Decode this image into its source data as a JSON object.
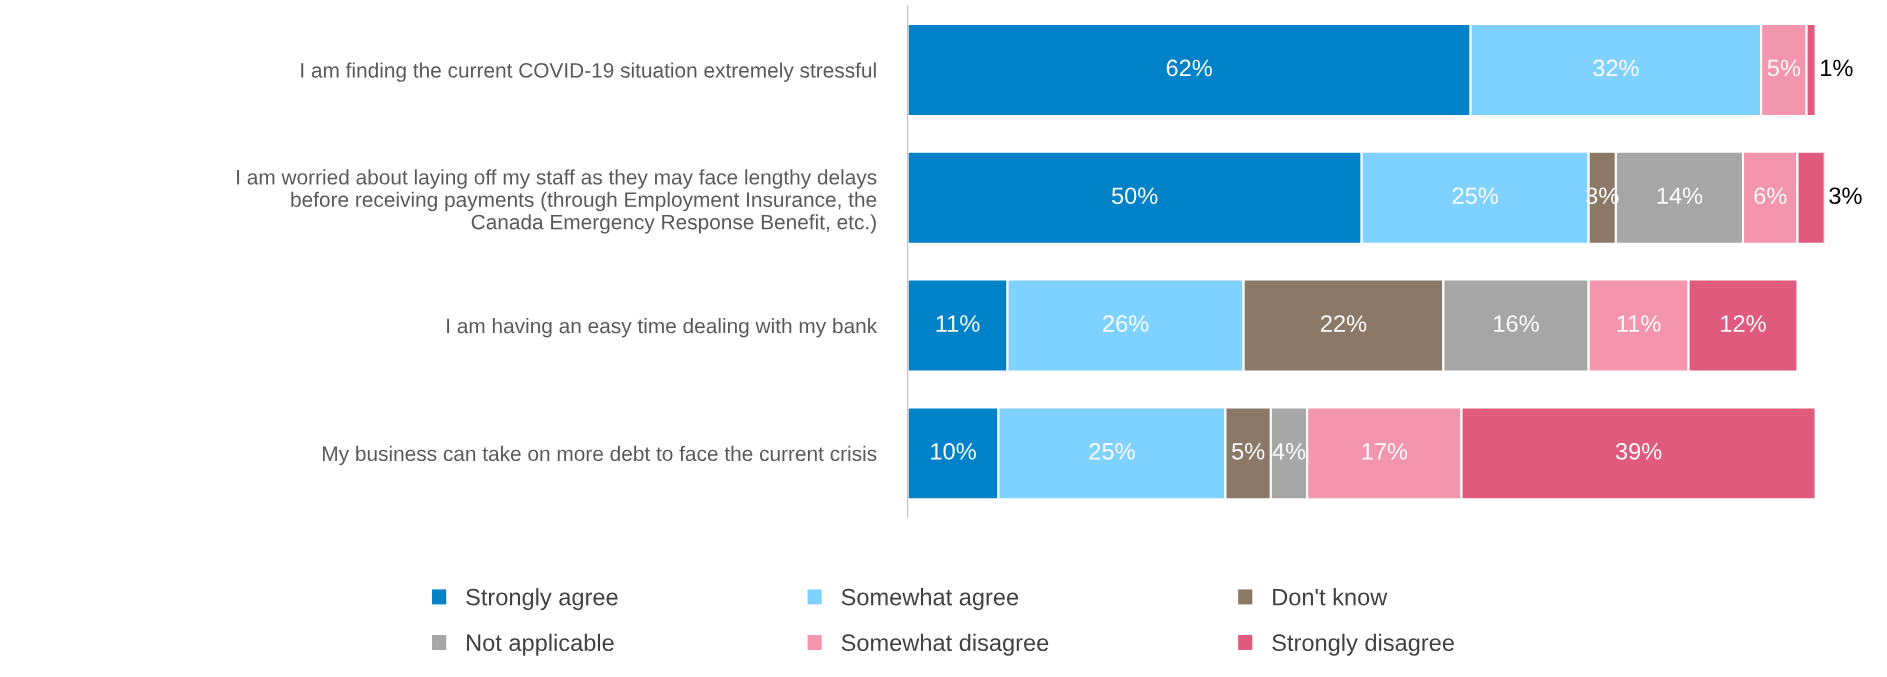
{
  "chart_data": {
    "type": "bar",
    "orientation": "horizontal",
    "stacked": true,
    "legend": "bottom",
    "grid": false,
    "categories": [
      "I am finding the current COVID-19 situation extremely stressful",
      "I am worried about laying off my staff as they may face lengthy delays\nbefore receiving payments (through Employment Insurance, the\nCanada Emergency Response Benefit, etc.)",
      "I am having an easy time dealing with my bank",
      "My business can take on more debt to face the current crisis"
    ],
    "series": [
      {
        "name": "Strongly agree",
        "color": "#0082c8",
        "values": [
          62,
          50,
          11,
          10
        ],
        "value_labels": [
          "62%",
          "50%",
          "11%",
          "10%"
        ]
      },
      {
        "name": "Somewhat agree",
        "color": "#7fd1ff",
        "values": [
          32,
          25,
          26,
          25
        ],
        "value_labels": [
          "32%",
          "25%",
          "26%",
          "25%"
        ]
      },
      {
        "name": "Don't know",
        "color": "#8b7866",
        "values": [
          null,
          3,
          22,
          5
        ],
        "value_labels": [
          null,
          "3%",
          "22%",
          "5%"
        ]
      },
      {
        "name": "Not applicable",
        "color": "#a6a6a6",
        "values": [
          null,
          14,
          16,
          4
        ],
        "value_labels": [
          null,
          "14%",
          "16%",
          "4%"
        ]
      },
      {
        "name": "Somewhat disagree",
        "color": "#f495ae",
        "values": [
          5,
          6,
          11,
          17
        ],
        "value_labels": [
          "5%",
          "6%",
          "11%",
          "17%"
        ]
      },
      {
        "name": "Strongly disagree",
        "color": "#e05a7e",
        "values": [
          1,
          3,
          12,
          39
        ],
        "value_labels": [
          "1%",
          "3%",
          "12%",
          "39%"
        ]
      }
    ]
  }
}
